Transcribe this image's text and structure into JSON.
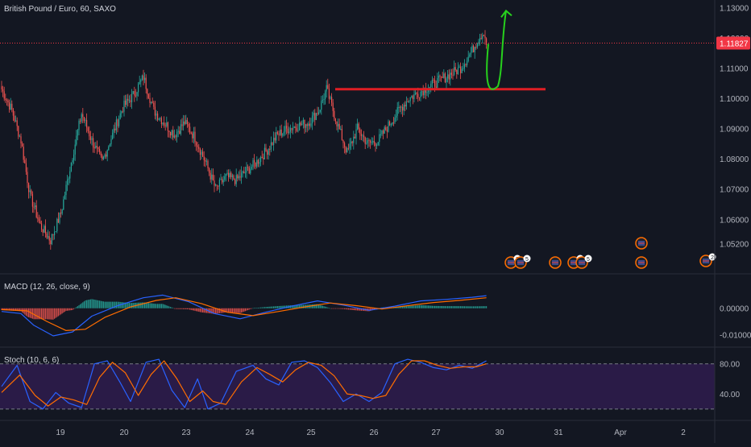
{
  "header": {
    "symbol_title": "British Pound / Euro, 60, SAXO"
  },
  "colors": {
    "background": "#131722",
    "up": "#26a69a",
    "down": "#ef5350",
    "support_line": "#e01e24",
    "annotation": "#27d11d",
    "macd_line": "#2962ff",
    "signal_line": "#ff6d00",
    "stoch_band": "#2a1b47",
    "price_tag": "#f23645"
  },
  "current_price": {
    "label": "1.11827",
    "value": 1.11827
  },
  "event_badges": [
    "2",
    "5",
    "5",
    "5",
    "2"
  ],
  "chart_data": [
    {
      "type": "candlestick",
      "title": "British Pound / Euro, 60, SAXO",
      "ylim": [
        1.0425,
        1.1325
      ],
      "y_ticks": [
        "1.13000",
        "1.12000",
        "1.11000",
        "1.10000",
        "1.09000",
        "1.08000",
        "1.07000",
        "1.06000",
        "1.05200"
      ],
      "x_ticks": [
        "19",
        "20",
        "23",
        "24",
        "25",
        "26",
        "27",
        "30",
        "31",
        "Apr",
        "2"
      ],
      "grid": false,
      "anchor_closes": [
        [
          0,
          1.103
        ],
        [
          8,
          1.096
        ],
        [
          15,
          1.086
        ],
        [
          22,
          1.068
        ],
        [
          30,
          1.058
        ],
        [
          38,
          1.053
        ],
        [
          46,
          1.062
        ],
        [
          54,
          1.079
        ],
        [
          62,
          1.095
        ],
        [
          70,
          1.086
        ],
        [
          78,
          1.079
        ],
        [
          86,
          1.088
        ],
        [
          94,
          1.097
        ],
        [
          102,
          1.101
        ],
        [
          110,
          1.107
        ],
        [
          118,
          1.096
        ],
        [
          126,
          1.092
        ],
        [
          134,
          1.088
        ],
        [
          142,
          1.092
        ],
        [
          150,
          1.087
        ],
        [
          158,
          1.079
        ],
        [
          166,
          1.07
        ],
        [
          174,
          1.074
        ],
        [
          182,
          1.073
        ],
        [
          190,
          1.076
        ],
        [
          198,
          1.079
        ],
        [
          206,
          1.083
        ],
        [
          214,
          1.088
        ],
        [
          222,
          1.09
        ],
        [
          230,
          1.091
        ],
        [
          238,
          1.092
        ],
        [
          246,
          1.096
        ],
        [
          252,
          1.103
        ],
        [
          260,
          1.092
        ],
        [
          268,
          1.082
        ],
        [
          276,
          1.09
        ],
        [
          284,
          1.085
        ],
        [
          292,
          1.086
        ],
        [
          300,
          1.091
        ],
        [
          308,
          1.096
        ],
        [
          316,
          1.1
        ],
        [
          324,
          1.102
        ],
        [
          332,
          1.104
        ],
        [
          340,
          1.106
        ],
        [
          348,
          1.108
        ],
        [
          356,
          1.11
        ],
        [
          364,
          1.115
        ],
        [
          370,
          1.12
        ],
        [
          374,
          1.122
        ],
        [
          376,
          1.1183
        ]
      ],
      "support_level": 1.103,
      "projection_target": 1.13
    },
    {
      "type": "line",
      "title": "MACD (12, 26, close, 9)",
      "ylim": [
        -0.0145,
        0.0125
      ],
      "y_ticks": [
        "0.00000",
        "-0.01000"
      ],
      "series": [
        {
          "values": [
            [
              0,
              -0.0012
            ],
            [
              15,
              -0.002
            ],
            [
              25,
              -0.0065
            ],
            [
              40,
              -0.0105
            ],
            [
              55,
              -0.009
            ],
            [
              70,
              -0.003
            ],
            [
              90,
              0.001
            ],
            [
              110,
              0.004
            ],
            [
              125,
              0.005
            ],
            [
              145,
              0.0025
            ],
            [
              165,
              -0.002
            ],
            [
              185,
              -0.004
            ],
            [
              205,
              -0.0015
            ],
            [
              225,
              0.0008
            ],
            [
              245,
              0.0028
            ],
            [
              265,
              0.0012
            ],
            [
              285,
              -0.0008
            ],
            [
              305,
              0.0008
            ],
            [
              325,
              0.0028
            ],
            [
              345,
              0.0034
            ],
            [
              365,
              0.0042
            ],
            [
              376,
              0.0048
            ]
          ]
        },
        {
          "values": [
            [
              0,
              -0.0005
            ],
            [
              20,
              -0.001
            ],
            [
              35,
              -0.005
            ],
            [
              50,
              -0.0085
            ],
            [
              65,
              -0.008
            ],
            [
              80,
              -0.0035
            ],
            [
              100,
              0.0005
            ],
            [
              120,
              0.003
            ],
            [
              135,
              0.004
            ],
            [
              155,
              0.0018
            ],
            [
              175,
              -0.0015
            ],
            [
              195,
              -0.0028
            ],
            [
              215,
              -0.0012
            ],
            [
              235,
              0.0005
            ],
            [
              255,
              0.002
            ],
            [
              275,
              0.001
            ],
            [
              295,
              -0.0003
            ],
            [
              315,
              0.001
            ],
            [
              335,
              0.0022
            ],
            [
              355,
              0.003
            ],
            [
              376,
              0.004
            ]
          ]
        }
      ]
    },
    {
      "type": "line",
      "title": "Stoch (10, 6, 6)",
      "ylim": [
        7,
        100
      ],
      "y_ticks": [
        "80.00",
        "40.00"
      ],
      "bands": [
        20,
        80
      ],
      "series": [
        {
          "values": [
            [
              0,
              50
            ],
            [
              12,
              78
            ],
            [
              22,
              30
            ],
            [
              32,
              20
            ],
            [
              42,
              42
            ],
            [
              52,
              28
            ],
            [
              62,
              22
            ],
            [
              72,
              80
            ],
            [
              82,
              84
            ],
            [
              92,
              55
            ],
            [
              100,
              30
            ],
            [
              112,
              82
            ],
            [
              122,
              86
            ],
            [
              132,
              45
            ],
            [
              142,
              22
            ],
            [
              152,
              60
            ],
            [
              160,
              20
            ],
            [
              170,
              28
            ],
            [
              182,
              70
            ],
            [
              195,
              78
            ],
            [
              205,
              60
            ],
            [
              215,
              52
            ],
            [
              225,
              82
            ],
            [
              235,
              84
            ],
            [
              245,
              75
            ],
            [
              255,
              55
            ],
            [
              265,
              30
            ],
            [
              275,
              40
            ],
            [
              285,
              30
            ],
            [
              295,
              42
            ],
            [
              305,
              80
            ],
            [
              315,
              86
            ],
            [
              325,
              82
            ],
            [
              335,
              75
            ],
            [
              345,
              72
            ],
            [
              355,
              78
            ],
            [
              365,
              74
            ],
            [
              376,
              84
            ]
          ]
        },
        {
          "values": [
            [
              0,
              42
            ],
            [
              14,
              65
            ],
            [
              26,
              38
            ],
            [
              36,
              24
            ],
            [
              46,
              36
            ],
            [
              56,
              32
            ],
            [
              66,
              26
            ],
            [
              76,
              62
            ],
            [
              86,
              82
            ],
            [
              96,
              68
            ],
            [
              106,
              38
            ],
            [
              116,
              66
            ],
            [
              126,
              84
            ],
            [
              136,
              60
            ],
            [
              146,
              30
            ],
            [
              156,
              44
            ],
            [
              164,
              30
            ],
            [
              174,
              26
            ],
            [
              186,
              56
            ],
            [
              198,
              75
            ],
            [
              208,
              66
            ],
            [
              218,
              56
            ],
            [
              228,
              72
            ],
            [
              238,
              82
            ],
            [
              248,
              78
            ],
            [
              258,
              64
            ],
            [
              268,
              40
            ],
            [
              278,
              38
            ],
            [
              288,
              34
            ],
            [
              298,
              38
            ],
            [
              308,
              66
            ],
            [
              318,
              84
            ],
            [
              328,
              84
            ],
            [
              338,
              78
            ],
            [
              348,
              74
            ],
            [
              358,
              76
            ],
            [
              368,
              76
            ],
            [
              376,
              80
            ]
          ]
        }
      ]
    }
  ]
}
